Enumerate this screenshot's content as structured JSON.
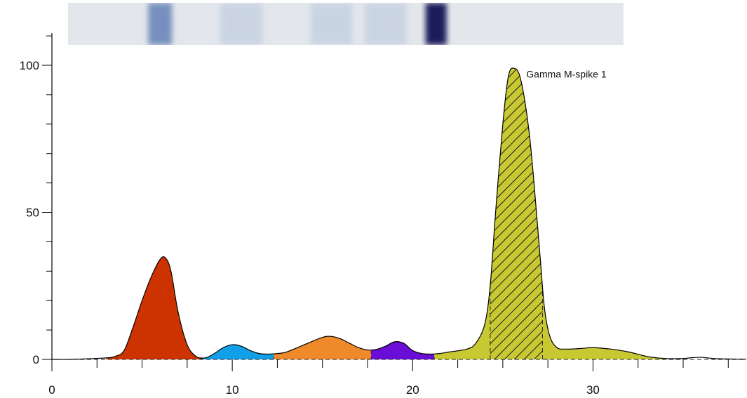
{
  "chart_data": {
    "type": "area",
    "title": "",
    "xlabel": "",
    "ylabel": "",
    "xlim": [
      0,
      38.5
    ],
    "ylim": [
      0,
      100
    ],
    "x_ticks": [
      0,
      10,
      20,
      30
    ],
    "x_tick_labels": [
      "0",
      "10",
      "20",
      "30"
    ],
    "y_ticks": [
      0,
      50,
      100
    ],
    "y_tick_labels": [
      "0",
      "50",
      "100"
    ],
    "grid": false,
    "legend": "none",
    "curve": {
      "x": [
        0,
        1,
        2,
        3,
        3.5,
        4,
        4.5,
        5,
        5.5,
        6,
        6.3,
        6.6,
        7,
        7.5,
        8,
        8.5,
        9,
        9.5,
        10,
        10.5,
        11,
        11.5,
        12,
        12.5,
        13,
        14,
        15,
        15.5,
        16,
        16.5,
        17,
        17.5,
        18,
        18.5,
        19,
        19.5,
        20,
        20.5,
        21,
        21.5,
        22,
        23,
        23.5,
        24,
        24.3,
        24.6,
        25,
        25.3,
        25.6,
        26,
        26.5,
        27,
        27.3,
        27.6,
        28,
        28.5,
        29,
        29.5,
        30,
        31,
        32,
        33,
        34,
        35,
        35.5,
        36,
        36.5,
        37,
        38,
        38.5
      ],
      "y": [
        0,
        0,
        0.2,
        0.5,
        1,
        3,
        11,
        20,
        28,
        34,
        34.5,
        30,
        16,
        5,
        1,
        0.5,
        2,
        4,
        5,
        4.5,
        3,
        2,
        1.8,
        2,
        2.5,
        5,
        7.5,
        7.8,
        7,
        5.5,
        4,
        3.2,
        3.4,
        4.5,
        6,
        5.5,
        3,
        2,
        1.8,
        2,
        2.5,
        3.5,
        5.5,
        12,
        25,
        50,
        80,
        96,
        99,
        95,
        75,
        40,
        18,
        8,
        4,
        3.5,
        3.6,
        3.8,
        4,
        3.5,
        2.5,
        1,
        0.3,
        0.3,
        0.6,
        0.7,
        0.4,
        0.2,
        0.1,
        0.1
      ]
    },
    "fractions": [
      {
        "from": 3.0,
        "to": 8.3,
        "color": "#cc3300"
      },
      {
        "from": 8.3,
        "to": 12.3,
        "color": "#119fe8"
      },
      {
        "from": 12.3,
        "to": 17.7,
        "color": "#ef8a2a"
      },
      {
        "from": 17.7,
        "to": 21.2,
        "color": "#6a0dd6"
      },
      {
        "from": 21.2,
        "to": 34.0,
        "color": "#c7c832"
      }
    ],
    "m_spike": {
      "from": 24.3,
      "to": 27.2,
      "color": "#c7c832",
      "pattern": "diagonal-hatch"
    },
    "annotations": [
      {
        "text": "Gamma M-spike 1",
        "x": 26.3,
        "y": 97
      }
    ],
    "gel_strip": {
      "bands": [
        {
          "x": 6.0,
          "intensity": 0.55
        },
        {
          "x": 10.5,
          "intensity": 0.12
        },
        {
          "x": 15.5,
          "intensity": 0.15
        },
        {
          "x": 18.5,
          "intensity": 0.12
        },
        {
          "x": 21.3,
          "intensity": 1.0
        }
      ]
    }
  }
}
